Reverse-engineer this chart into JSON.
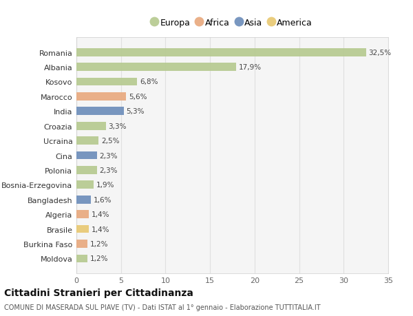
{
  "categories": [
    "Romania",
    "Albania",
    "Kosovo",
    "Marocco",
    "India",
    "Croazia",
    "Ucraina",
    "Cina",
    "Polonia",
    "Bosnia-Erzegovina",
    "Bangladesh",
    "Algeria",
    "Brasile",
    "Burkina Faso",
    "Moldova"
  ],
  "values": [
    32.5,
    17.9,
    6.8,
    5.6,
    5.3,
    3.3,
    2.5,
    2.3,
    2.3,
    1.9,
    1.6,
    1.4,
    1.4,
    1.2,
    1.2
  ],
  "labels": [
    "32,5%",
    "17,9%",
    "6,8%",
    "5,6%",
    "5,3%",
    "3,3%",
    "2,5%",
    "2,3%",
    "2,3%",
    "1,9%",
    "1,6%",
    "1,4%",
    "1,4%",
    "1,2%",
    "1,2%"
  ],
  "colors": [
    "#b5c98e",
    "#b5c98e",
    "#b5c98e",
    "#e8a87c",
    "#6b8cba",
    "#b5c98e",
    "#b5c98e",
    "#6b8cba",
    "#b5c98e",
    "#b5c98e",
    "#6b8cba",
    "#e8a87c",
    "#e8c870",
    "#e8a87c",
    "#b5c98e"
  ],
  "legend_labels": [
    "Europa",
    "Africa",
    "Asia",
    "America"
  ],
  "legend_colors": [
    "#b5c98e",
    "#e8a87c",
    "#6b8cba",
    "#e8c870"
  ],
  "title": "Cittadini Stranieri per Cittadinanza",
  "subtitle": "COMUNE DI MASERADA SUL PIAVE (TV) - Dati ISTAT al 1° gennaio - Elaborazione TUTTITALIA.IT",
  "xlim": [
    0,
    35
  ],
  "xticks": [
    0,
    5,
    10,
    15,
    20,
    25,
    30,
    35
  ],
  "background_color": "#ffffff",
  "plot_bg_color": "#f5f5f5",
  "grid_color": "#e0e0e0",
  "bar_height": 0.55
}
